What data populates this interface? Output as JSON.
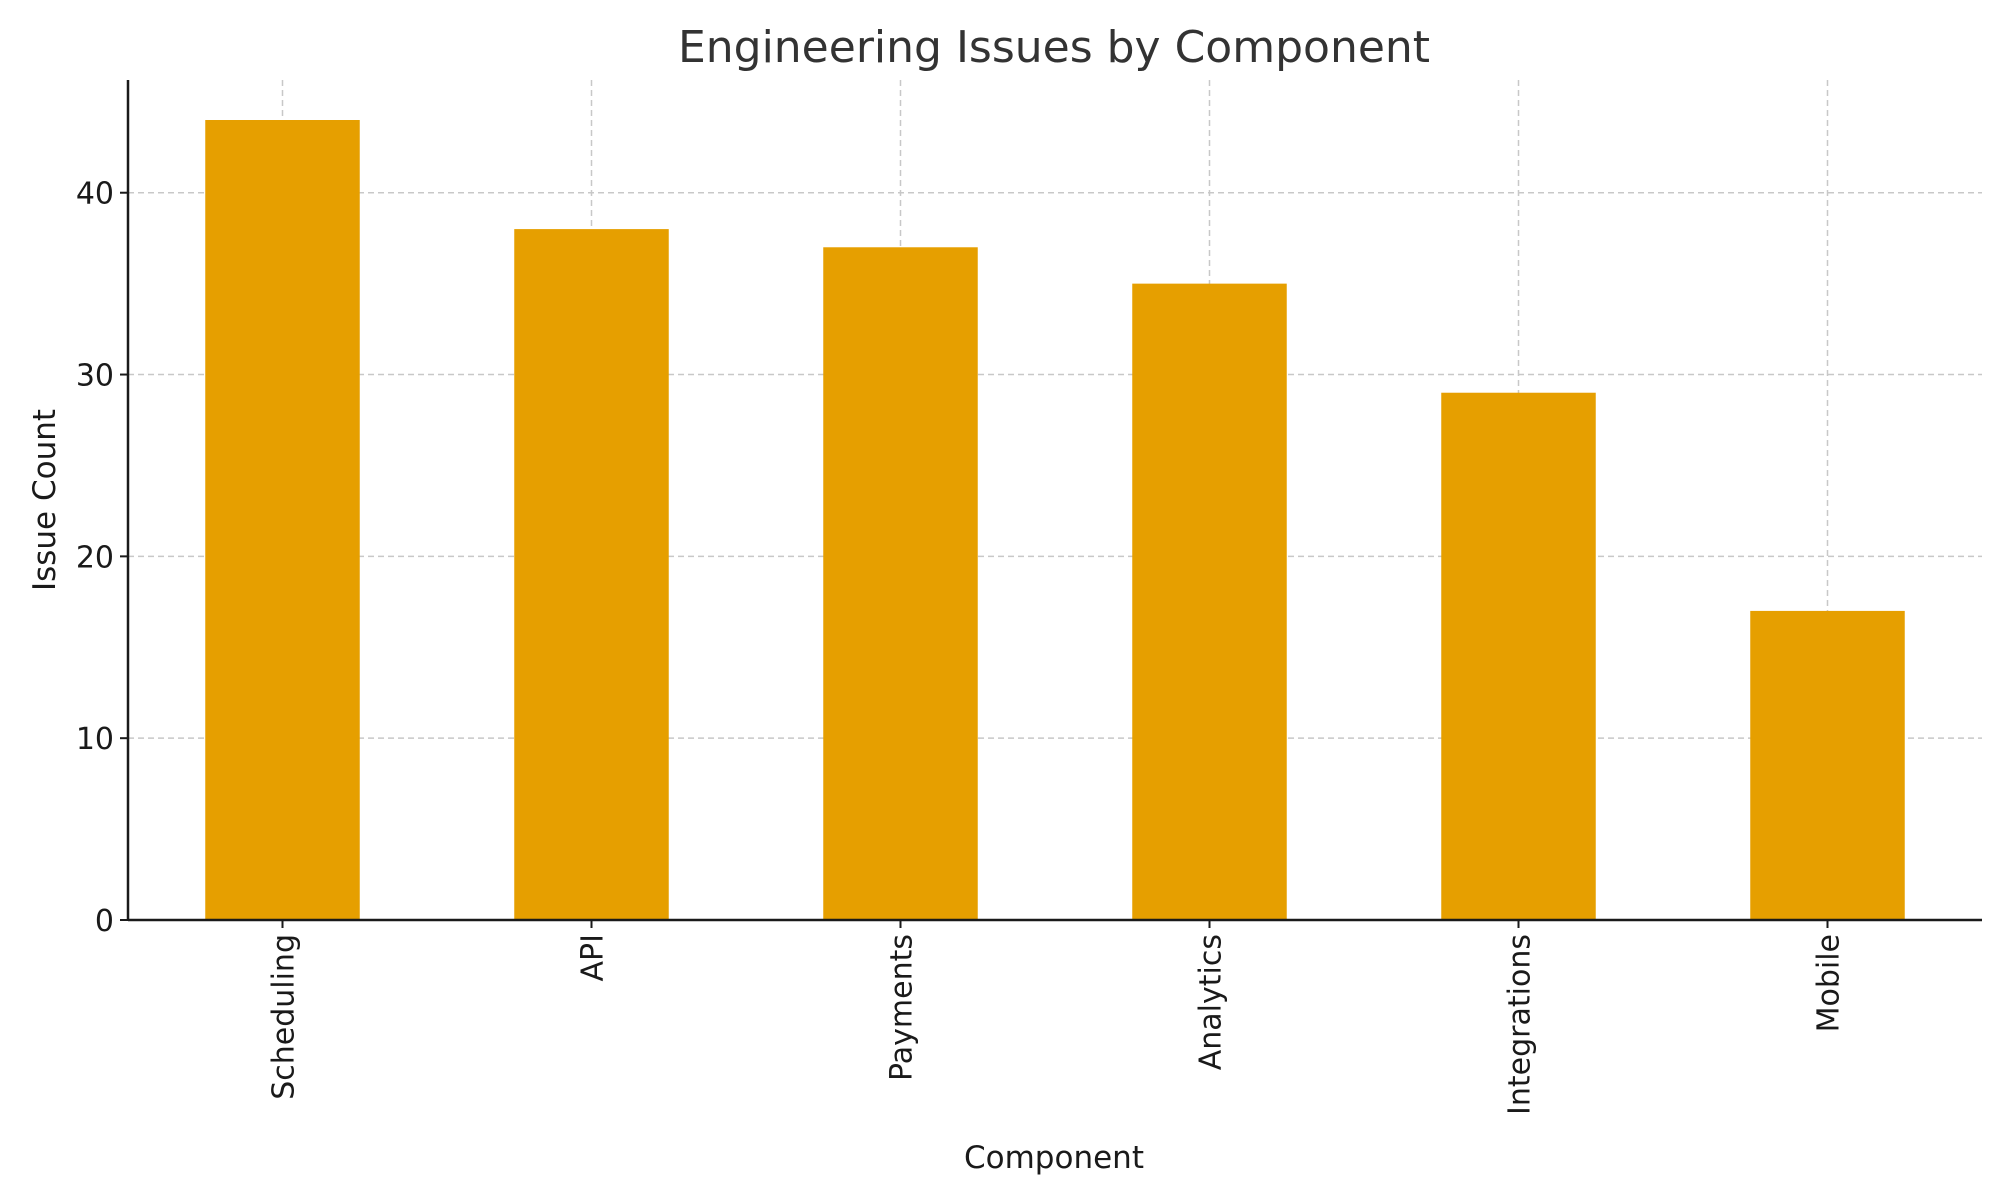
{
  "chart_data": {
    "type": "bar",
    "title": "Engineering Issues by Component",
    "xlabel": "Component",
    "ylabel": "Issue Count",
    "categories": [
      "Scheduling",
      "API",
      "Payments",
      "Analytics",
      "Integrations",
      "Mobile"
    ],
    "values": [
      44,
      38,
      37,
      35,
      29,
      17
    ],
    "ylim": [
      0,
      46.2
    ],
    "yticks": [
      0,
      10,
      20,
      30,
      40
    ],
    "grid": true,
    "bar_color": "#E69F00"
  }
}
